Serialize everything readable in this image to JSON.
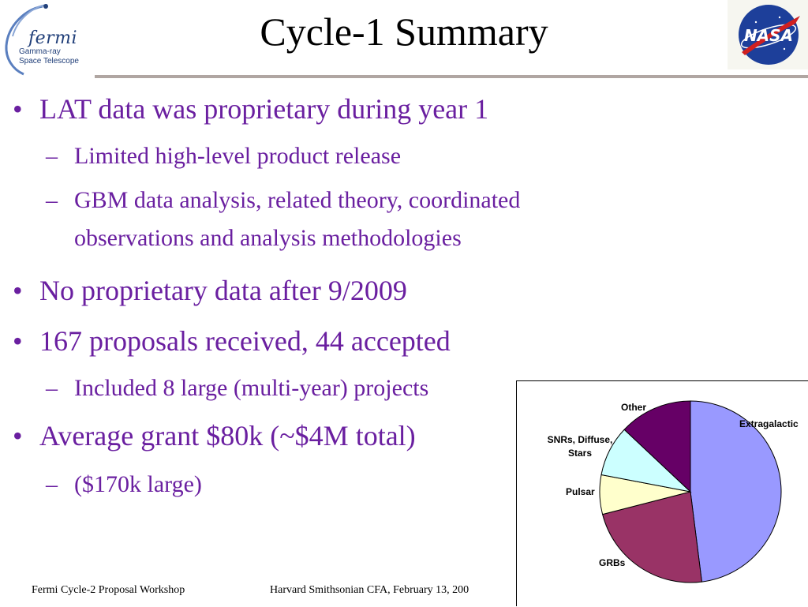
{
  "title": "Cycle-1 Summary",
  "logos": {
    "fermi": {
      "word": "fermi",
      "line1": "Gamma-ray",
      "line2": "Space Telescope"
    },
    "nasa": {
      "word": "NASA"
    }
  },
  "bullets": [
    {
      "level": 1,
      "text": "LAT data was proprietary during year 1"
    },
    {
      "level": 2,
      "text": "Limited high-level product release"
    },
    {
      "level": 2,
      "text": "GBM data analysis, related theory, coordinated"
    },
    {
      "level": 2,
      "text": "observations and analysis methodologies",
      "continuation": true
    },
    {
      "level": 1,
      "text": "No proprietary data after 9/2009"
    },
    {
      "level": 1,
      "text": "167 proposals received, 44 accepted"
    },
    {
      "level": 2,
      "text": "Included 8 large (multi-year) projects"
    },
    {
      "level": 1,
      "text": "Average grant $80k (~$4M total)"
    },
    {
      "level": 2,
      "text": "($170k large)"
    }
  ],
  "markers": {
    "level1": "•",
    "level2": "–"
  },
  "chart_data": {
    "type": "pie",
    "title": "",
    "start_angle_deg": 90,
    "direction": "clockwise",
    "slices": [
      {
        "label": "Extragalactic",
        "value": 48,
        "color": "#9999ff"
      },
      {
        "label": "GRBs",
        "value": 23,
        "color": "#993366"
      },
      {
        "label": "Pulsar",
        "value": 7,
        "color": "#ffffcc"
      },
      {
        "label": "SNRs, Diffuse,",
        "label2": "Stars",
        "value": 9,
        "color": "#ccffff"
      },
      {
        "label": "Other",
        "value": 13,
        "color": "#660066"
      }
    ]
  },
  "footer": {
    "left": "Fermi Cycle-2 Proposal Workshop",
    "right": "Harvard Smithsonian CFA,  February 13, 200"
  }
}
